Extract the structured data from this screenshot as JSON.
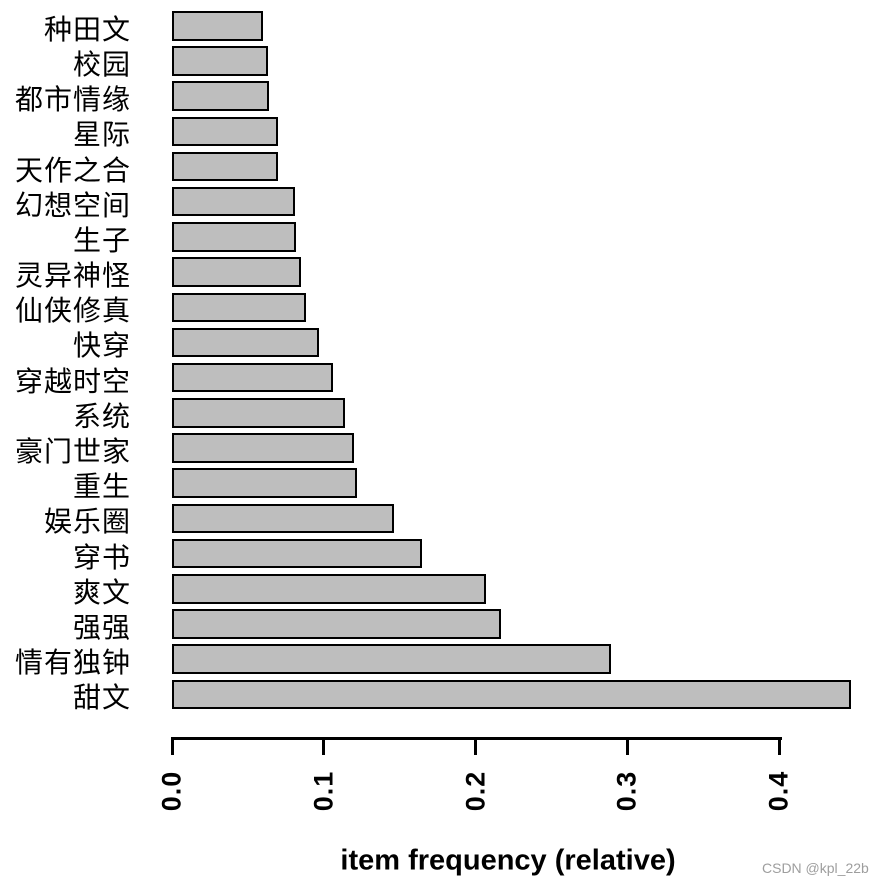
{
  "watermark": "CSDN @kpl_22b",
  "chart_data": {
    "type": "bar",
    "orientation": "horizontal",
    "title": "",
    "xlabel": "item frequency (relative)",
    "ylabel": "",
    "categories": [
      "种田文",
      "校园",
      "都市情缘",
      "星际",
      "天作之合",
      "幻想空间",
      "生子",
      "灵异神怪",
      "仙侠修真",
      "快穿",
      "穿越时空",
      "系统",
      "豪门世家",
      "重生",
      "娱乐圈",
      "穿书",
      "爽文",
      "强强",
      "情有独钟",
      "甜文"
    ],
    "values": [
      0.06,
      0.063,
      0.064,
      0.07,
      0.07,
      0.081,
      0.082,
      0.085,
      0.088,
      0.097,
      0.106,
      0.114,
      0.12,
      0.122,
      0.146,
      0.165,
      0.207,
      0.217,
      0.289,
      0.447
    ],
    "xticks": [
      0.0,
      0.1,
      0.2,
      0.3,
      0.4
    ],
    "xtick_labels": [
      "0.0",
      "0.1",
      "0.2",
      "0.3",
      "0.4"
    ],
    "xlim": [
      0.0,
      0.447
    ],
    "grid": false,
    "legend": null,
    "bar_color": "#BEBEBE",
    "bar_border_color": "#000000"
  }
}
